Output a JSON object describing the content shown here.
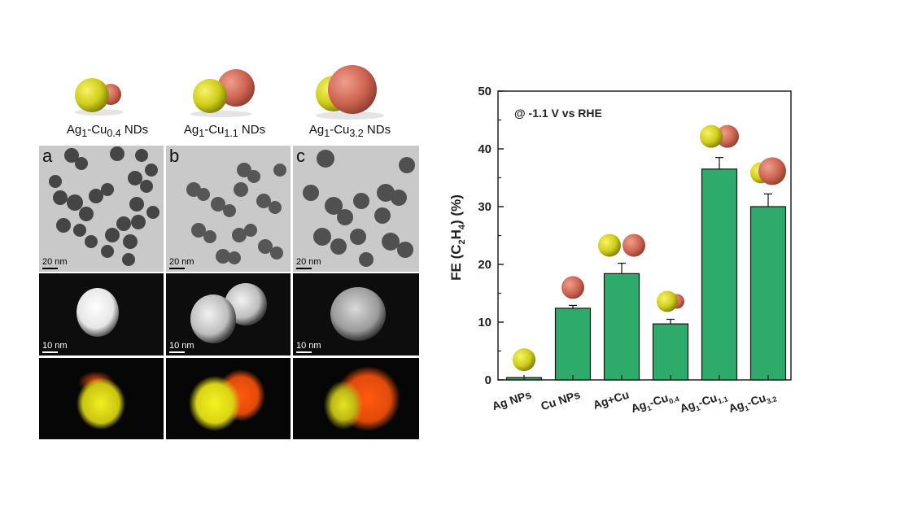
{
  "figure": {
    "nd_labels": [
      {
        "base": "Ag",
        "s1": "1",
        "mid": "-Cu",
        "s2": "0.4",
        "suffix": " NDs"
      },
      {
        "base": "Ag",
        "s1": "1",
        "mid": "-Cu",
        "s2": "1.1",
        "suffix": " NDs"
      },
      {
        "base": "Ag",
        "s1": "1",
        "mid": "-Cu",
        "s2": "3.2",
        "suffix": " NDs"
      }
    ],
    "panel_letters": [
      "a",
      "b",
      "c"
    ],
    "scale_tem": "20 nm",
    "scale_stem": "10 nm"
  },
  "chart_data": {
    "type": "bar",
    "annotation": "@ -1.1 V vs RHE",
    "ylabel": {
      "pre": "FE (C",
      "s1": "2",
      "mid": "H",
      "s2": "4",
      "post": ")  (%)"
    },
    "ylim": [
      0,
      50
    ],
    "yticks": [
      0,
      10,
      20,
      30,
      40,
      50
    ],
    "categories": [
      {
        "base": "Ag NPs",
        "sub": "",
        "mid": "",
        "sub2": ""
      },
      {
        "base": "Cu NPs",
        "sub": "",
        "mid": "",
        "sub2": ""
      },
      {
        "base": "Ag+Cu",
        "sub": "",
        "mid": "",
        "sub2": ""
      },
      {
        "base": "Ag",
        "sub": "1",
        "mid": "-Cu",
        "sub2": "0.4"
      },
      {
        "base": "Ag",
        "sub": "1",
        "mid": "-Cu",
        "sub2": "1.1"
      },
      {
        "base": "Ag",
        "sub": "1",
        "mid": "-Cu",
        "sub2": "3.2"
      }
    ],
    "values": [
      0.4,
      12.4,
      18.4,
      9.7,
      36.5,
      30.0
    ],
    "errors": [
      0,
      0.5,
      1.8,
      0.8,
      2.0,
      2.2
    ],
    "bar_color": "#2eaa6a",
    "icons": [
      "ag-sphere",
      "cu-sphere",
      "separate-ag-cu-spheres",
      "small-cu-dimer",
      "equal-dimer",
      "large-cu-dimer"
    ],
    "grid": false,
    "legend": "none"
  },
  "colors": {
    "ag": "#d4d21c",
    "cu": "#d56a58",
    "bar": "#2eaa6a"
  }
}
